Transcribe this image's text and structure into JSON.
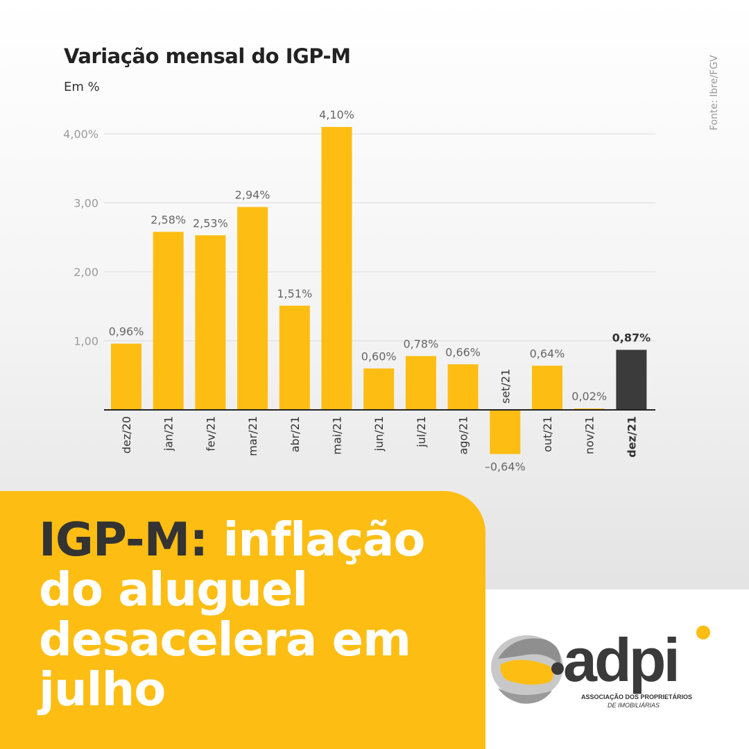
{
  "header": {
    "title": "Variação mensal do IGP-M",
    "subtitle": "Em %",
    "source": "Fonte: Ibre/FGV"
  },
  "colors": {
    "bar": "#fdbd13",
    "highlight_bar": "#3b3b3b",
    "banner": "#fdbd13",
    "headline_dark": "#333333",
    "headline_light": "#ffffff"
  },
  "chart_data": {
    "type": "bar",
    "title": "Variação mensal do IGP-M",
    "ylabel": "Em %",
    "ylim": [
      -0.8,
      4.2
    ],
    "yticks": [
      1.0,
      2.0,
      3.0,
      4.0
    ],
    "ytick_labels": [
      "1,00",
      "2,00",
      "3,00",
      "4,00%"
    ],
    "grid": true,
    "categories": [
      "dez/20",
      "jan/21",
      "fev/21",
      "mar/21",
      "abr/21",
      "mai/21",
      "jun/21",
      "jul/21",
      "ago/21",
      "set/21",
      "out/21",
      "nov/21",
      "dez/21"
    ],
    "values": [
      0.96,
      2.58,
      2.53,
      2.94,
      1.51,
      4.1,
      0.6,
      0.78,
      0.66,
      -0.64,
      0.64,
      0.02,
      0.87
    ],
    "value_labels": [
      "0,96%",
      "2,58%",
      "2,53%",
      "2,94%",
      "1,51%",
      "4,10%",
      "0,60%",
      "0,78%",
      "0,66%",
      "–0,64%",
      "0,64%",
      "0,02%",
      "0,87%"
    ],
    "highlight_index": 12
  },
  "banner": {
    "headline_part1": "IGP-M:",
    "headline_part2": " inflação do aluguel desacelera em julho"
  },
  "logo": {
    "wordmark": "adpi",
    "tagline_line1": "ASSOCIAÇÃO DOS PROPRIETÁRIOS",
    "tagline_line2": "DE IMOBILIÁRIAS"
  }
}
